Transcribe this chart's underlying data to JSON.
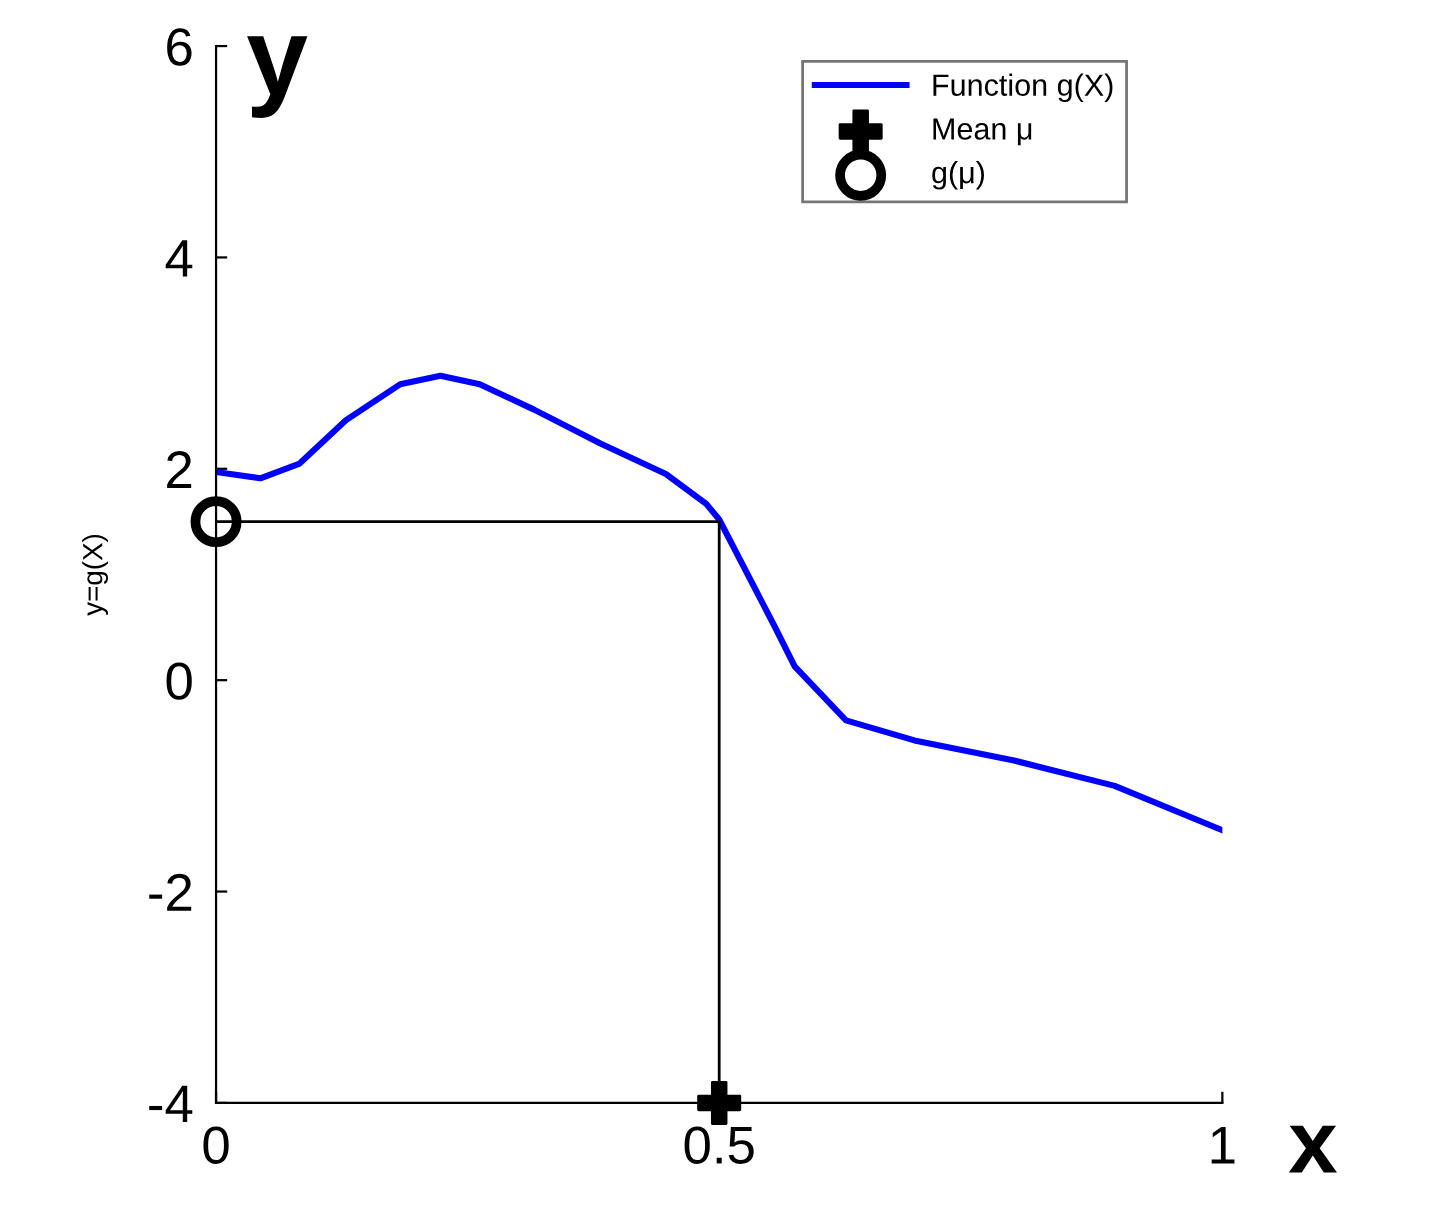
{
  "chart_data": {
    "type": "line",
    "title": "y",
    "xlabel": "x",
    "ylabel": "y=g(X)",
    "xlim": [
      0,
      1
    ],
    "ylim": [
      -4,
      6
    ],
    "xticks": [
      0,
      0.5,
      1
    ],
    "yticks": [
      -4,
      -2,
      0,
      2,
      4,
      6
    ],
    "grid": false,
    "legend": "top right",
    "series": [
      {
        "name": "Function g(X)",
        "color": "#0000ff",
        "marker": "none",
        "line_style": "solid",
        "x": [
          0,
          0.044,
          0.083,
          0.129,
          0.183,
          0.223,
          0.262,
          0.316,
          0.382,
          0.447,
          0.487,
          0.5,
          0.555,
          0.575,
          0.626,
          0.694,
          0.793,
          0.893,
          1.0
        ],
        "values": [
          1.97,
          1.91,
          2.05,
          2.46,
          2.8,
          2.88,
          2.8,
          2.56,
          2.24,
          1.95,
          1.67,
          1.52,
          0.51,
          0.13,
          -0.38,
          -0.57,
          -0.76,
          -1.0,
          -1.42
        ]
      },
      {
        "color": "#000000",
        "marker": "none",
        "line_style": "solid",
        "x": [
          0,
          0.5,
          0.5
        ],
        "values": [
          1.5,
          1.5,
          -4
        ]
      },
      {
        "name": "Mean μ",
        "type": "scatter",
        "color": "#000000",
        "marker": "cross",
        "x": [
          0.5
        ],
        "values": [
          -4
        ]
      },
      {
        "name": "g(μ)",
        "type": "scatter",
        "color": "#000000",
        "marker": "circle",
        "x": [
          0
        ],
        "values": [
          1.5
        ]
      }
    ]
  }
}
